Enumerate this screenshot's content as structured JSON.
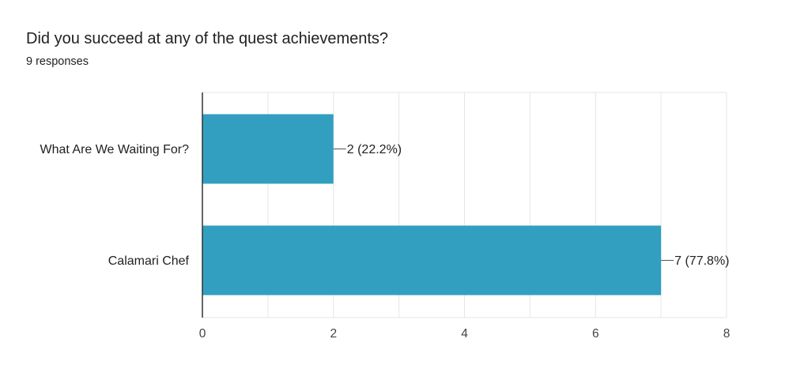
{
  "question": {
    "title": "Did you succeed at any of the quest achievements?",
    "responses": "9 responses"
  },
  "colors": {
    "bar": "#329FC0",
    "axis": "#333333",
    "grid": "#E6E6E6",
    "text": "#202124",
    "connector": "#555555"
  },
  "chart_data": {
    "type": "bar",
    "orientation": "horizontal",
    "categories": [
      "What Are We Waiting For?",
      "Calamari Chef"
    ],
    "values": [
      2,
      7
    ],
    "data_labels": [
      "2 (22.2%)",
      "7 (77.8%)"
    ],
    "xlim": [
      0,
      8
    ],
    "xticks": [
      0,
      2,
      4,
      6,
      8
    ],
    "grid": true,
    "legend": "none"
  }
}
